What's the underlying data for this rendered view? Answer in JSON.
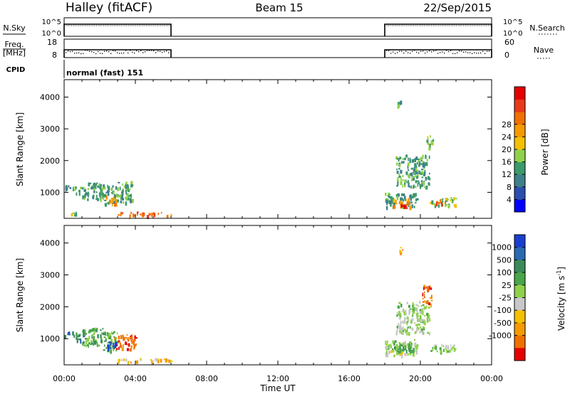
{
  "header": {
    "station": "Halley (fitACF)",
    "beam": "Beam 15",
    "date": "22/Sep/2015"
  },
  "strip_labels": {
    "nsky": "N.Sky",
    "nsearch": "N.Search",
    "freq_line1": "Freq.",
    "freq_line2": "[MHz]",
    "nave": "Nave",
    "cpid": "CPID",
    "cpid_value": "normal (fast) 151"
  },
  "chart_data": [
    {
      "type": "line",
      "name": "noise-strip",
      "left_ticks": [
        "10^5",
        "10^0"
      ],
      "right_ticks": [
        "10^5",
        "10^0"
      ],
      "left_label": "N.Sky",
      "right_label": "N.Search",
      "active_intervals_hours": [
        [
          0.0,
          6.0
        ],
        [
          18.0,
          24.0
        ]
      ],
      "level": "high"
    },
    {
      "type": "scatter",
      "name": "freq-nave-strip",
      "left_ticks": [
        "18",
        "8"
      ],
      "right_ticks": [
        "60",
        "0"
      ],
      "left_label": "Freq. [MHz]",
      "right_label": "Nave",
      "active_intervals_hours": [
        [
          0.0,
          6.0
        ],
        [
          18.0,
          24.0
        ]
      ]
    },
    {
      "type": "heatmap",
      "name": "power-panel",
      "ylabel": "Slant Range [km]",
      "yticks": [
        1000,
        2000,
        3000,
        4000
      ],
      "ylim": [
        180,
        4550
      ],
      "xlim_hours": [
        0,
        24
      ],
      "colorbar": {
        "label": "Power [dB]",
        "ticks": [
          "4",
          "8",
          "12",
          "16",
          "20",
          "24",
          "28"
        ],
        "colors": [
          "#0000ff",
          "#2a4fb0",
          "#3f7f8a",
          "#3c9a6a",
          "#8fd24a",
          "#f5c000",
          "#f59a00",
          "#f07000",
          "#e83a1a",
          "#e40000"
        ]
      },
      "echoes": [
        {
          "t": [
            0.0,
            0.6
          ],
          "r": [
            1100,
            1250
          ],
          "level": 2
        },
        {
          "t": [
            0.5,
            1.2
          ],
          "r": [
            950,
            1200
          ],
          "level": 3
        },
        {
          "t": [
            1.0,
            2.2
          ],
          "r": [
            800,
            1350
          ],
          "level": 3
        },
        {
          "t": [
            2.0,
            3.0
          ],
          "r": [
            650,
            1250
          ],
          "level": 3
        },
        {
          "t": [
            2.3,
            3.0
          ],
          "r": [
            600,
            900
          ],
          "level": 6
        },
        {
          "t": [
            3.0,
            3.8
          ],
          "r": [
            700,
            1400
          ],
          "level": 3
        },
        {
          "t": [
            3.0,
            6.0
          ],
          "r": [
            280,
            400
          ],
          "level": 7
        },
        {
          "t": [
            0.2,
            0.8
          ],
          "r": [
            300,
            400
          ],
          "level": 4
        },
        {
          "t": [
            18.0,
            19.8
          ],
          "r": [
            550,
            1000
          ],
          "level": 3
        },
        {
          "t": [
            18.4,
            19.4
          ],
          "r": [
            550,
            850
          ],
          "level": 6
        },
        {
          "t": [
            18.8,
            19.2
          ],
          "r": [
            500,
            650
          ],
          "level": 9
        },
        {
          "t": [
            18.6,
            20.5
          ],
          "r": [
            1200,
            2200
          ],
          "level": 3
        },
        {
          "t": [
            20.3,
            20.7
          ],
          "r": [
            2400,
            2800
          ],
          "level": 4
        },
        {
          "t": [
            20.5,
            22.0
          ],
          "r": [
            600,
            850
          ],
          "level": 4
        },
        {
          "t": [
            20.8,
            21.4
          ],
          "r": [
            650,
            800
          ],
          "level": 7
        },
        {
          "t": [
            18.7,
            18.9
          ],
          "r": [
            3700,
            3900
          ],
          "level": 3
        }
      ]
    },
    {
      "type": "heatmap",
      "name": "velocity-panel",
      "ylabel": "Slant Range [km]",
      "yticks": [
        1000,
        2000,
        3000,
        4000
      ],
      "ylim": [
        180,
        4550
      ],
      "xlim_hours": [
        0,
        24
      ],
      "xlabel": "Time UT",
      "xticks": [
        "00:00",
        "04:00",
        "08:00",
        "12:00",
        "16:00",
        "20:00",
        "00:00"
      ],
      "colorbar": {
        "label": "Velocity [m s",
        "label_sup": "-1",
        "label_end": "]",
        "ticks": [
          "1000",
          "500",
          "100",
          "25",
          "-25",
          "-100",
          "-500",
          "-1000"
        ],
        "colors": [
          "#1a3fd0",
          "#2a6ab0",
          "#3c8a5a",
          "#4aa54a",
          "#8fd24a",
          "#c8c8c8",
          "#f5c000",
          "#f59a00",
          "#f07000",
          "#e40000"
        ]
      },
      "echoes": [
        {
          "t": [
            0.0,
            0.6
          ],
          "r": [
            1100,
            1250
          ],
          "level": 1
        },
        {
          "t": [
            0.5,
            1.2
          ],
          "r": [
            950,
            1200
          ],
          "level": 2
        },
        {
          "t": [
            1.0,
            2.2
          ],
          "r": [
            800,
            1350
          ],
          "level": 3
        },
        {
          "t": [
            2.0,
            3.0
          ],
          "r": [
            650,
            1250
          ],
          "level": 3
        },
        {
          "t": [
            2.4,
            2.9
          ],
          "r": [
            650,
            950
          ],
          "level": 0
        },
        {
          "t": [
            2.8,
            4.0
          ],
          "r": [
            700,
            1150
          ],
          "level": 8
        },
        {
          "t": [
            3.0,
            6.0
          ],
          "r": [
            280,
            400
          ],
          "level": 6
        },
        {
          "t": [
            18.0,
            19.8
          ],
          "r": [
            550,
            1000
          ],
          "level": 4
        },
        {
          "t": [
            18.4,
            19.6
          ],
          "r": [
            600,
            900
          ],
          "level": 3
        },
        {
          "t": [
            18.0,
            19.0
          ],
          "r": [
            500,
            650
          ],
          "level": 5
        },
        {
          "t": [
            18.6,
            20.5
          ],
          "r": [
            1200,
            2200
          ],
          "level": 4
        },
        {
          "t": [
            20.1,
            20.6
          ],
          "r": [
            2100,
            2700
          ],
          "level": 8
        },
        {
          "t": [
            20.5,
            22.0
          ],
          "r": [
            600,
            850
          ],
          "level": 4
        },
        {
          "t": [
            18.8,
            19.0
          ],
          "r": [
            3700,
            3900
          ],
          "level": 7
        }
      ]
    }
  ]
}
